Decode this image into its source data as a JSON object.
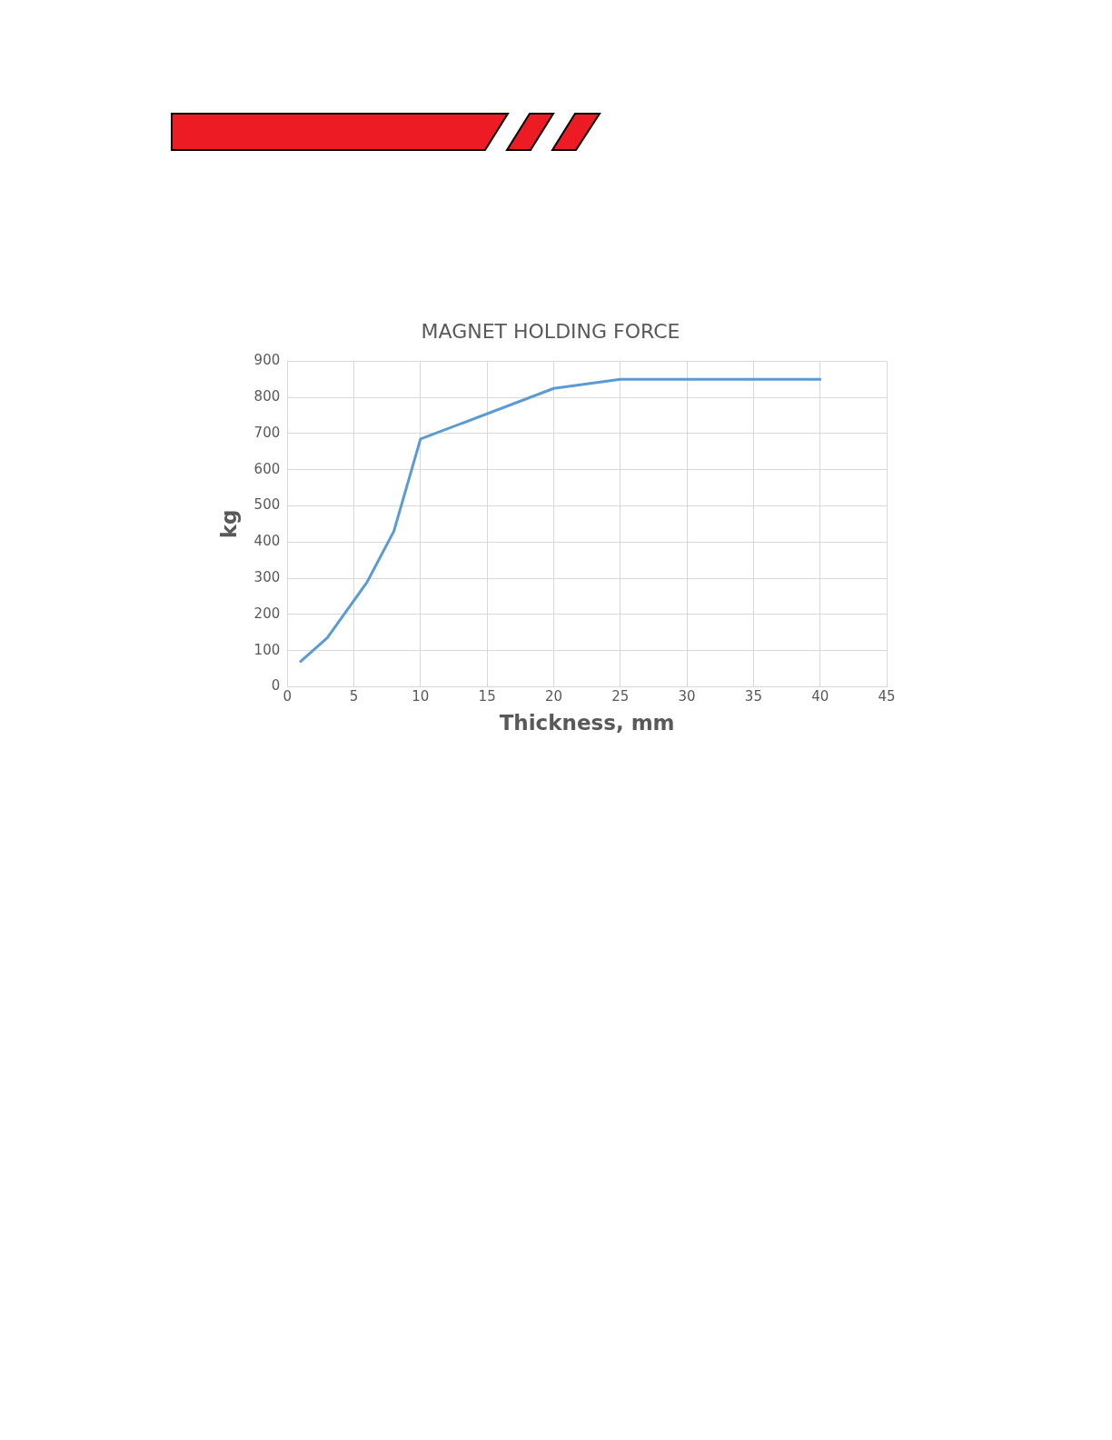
{
  "chart_data": {
    "type": "line",
    "title": "MAGNET HOLDING FORCE",
    "xlabel": "Thickness, mm",
    "ylabel": "kg",
    "x": [
      1,
      3,
      6,
      8,
      10,
      20,
      25,
      40
    ],
    "series": [
      {
        "color": "#5b9bd5",
        "values": [
          70,
          135,
          290,
          430,
          685,
          825,
          850,
          850
        ]
      }
    ],
    "xlim": [
      0,
      45
    ],
    "xticks": [
      0,
      5,
      10,
      15,
      20,
      25,
      30,
      35,
      40,
      45
    ],
    "ylim": [
      0,
      900
    ],
    "yticks": [
      0,
      100,
      200,
      300,
      400,
      500,
      600,
      700,
      800,
      900
    ],
    "grid": true,
    "legend": false,
    "marker": "none",
    "line_style": "solid"
  }
}
